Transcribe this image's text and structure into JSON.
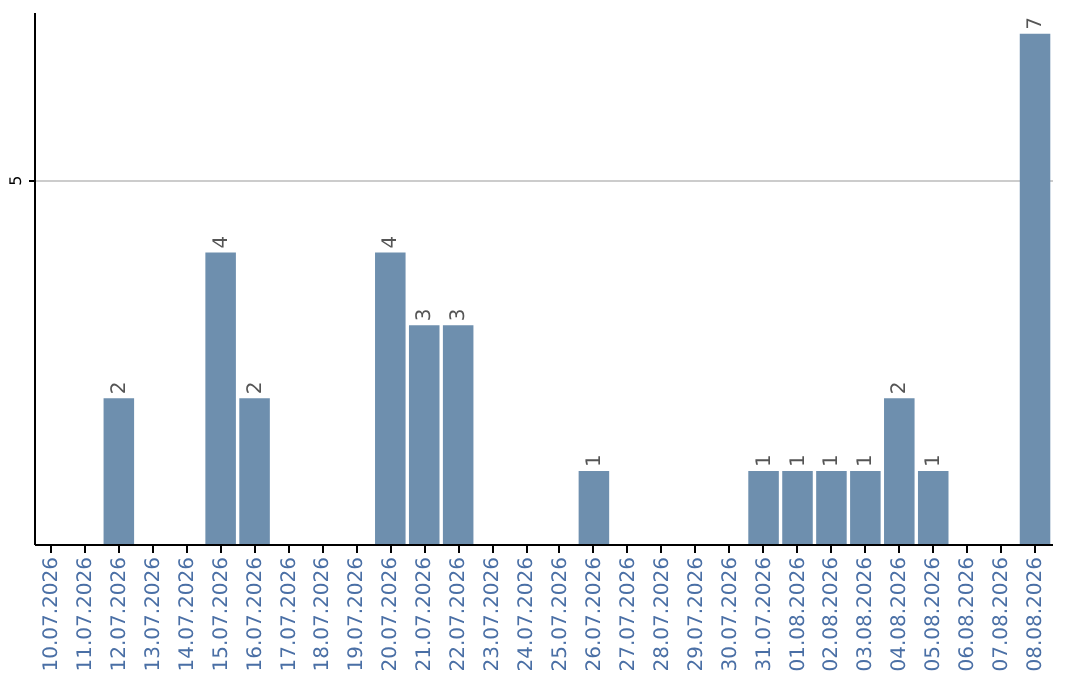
{
  "chart_data": {
    "type": "bar",
    "categories": [
      "10.07.2026",
      "11.07.2026",
      "12.07.2026",
      "13.07.2026",
      "14.07.2026",
      "15.07.2026",
      "16.07.2026",
      "17.07.2026",
      "18.07.2026",
      "19.07.2026",
      "20.07.2026",
      "21.07.2026",
      "22.07.2026",
      "23.07.2026",
      "24.07.2026",
      "25.07.2026",
      "26.07.2026",
      "27.07.2026",
      "28.07.2026",
      "29.07.2026",
      "30.07.2026",
      "31.07.2026",
      "01.08.2026",
      "02.08.2026",
      "03.08.2026",
      "04.08.2026",
      "05.08.2026",
      "06.08.2026",
      "07.08.2026",
      "08.08.2026"
    ],
    "values": [
      null,
      null,
      2,
      null,
      null,
      4,
      2,
      null,
      null,
      null,
      4,
      3,
      3,
      null,
      null,
      null,
      1,
      null,
      null,
      null,
      null,
      1,
      1,
      1,
      1,
      2,
      1,
      null,
      null,
      7
    ],
    "color": "#6e8fae",
    "ylim": [
      0,
      7.3
    ],
    "yticks": [
      5
    ],
    "grid": "y",
    "data_labels": true
  }
}
